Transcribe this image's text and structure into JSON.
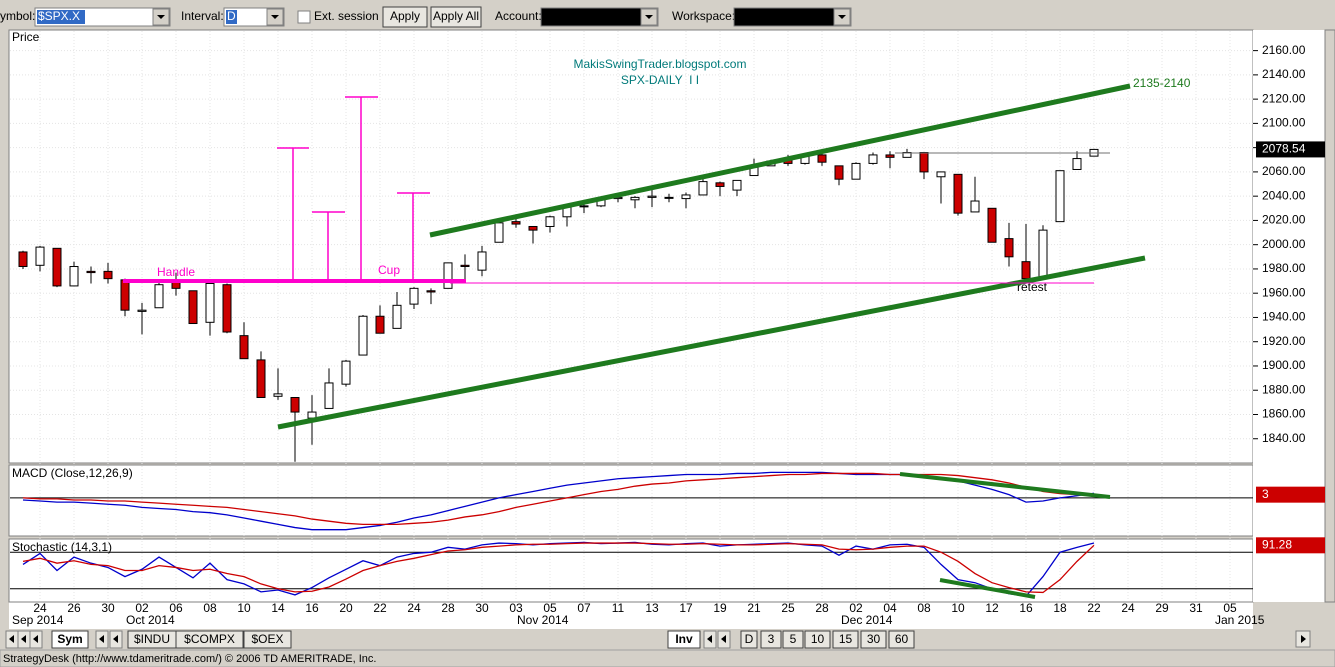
{
  "ui": {
    "toolbar": {
      "symbol_label": "ymbol:",
      "symbol": "$SPX.X",
      "interval_label": "Interval:",
      "interval": "D",
      "ext_session": "Ext. session",
      "apply": "Apply",
      "apply_all": "Apply All",
      "account_label": "Account:",
      "workspace_label": "Workspace:"
    },
    "left_tabs": [
      "Sym",
      "$INDU",
      "$COMPX",
      "$OEX"
    ],
    "right_tabs": [
      "Inv",
      "D",
      "3",
      "5",
      "10",
      "15",
      "30",
      "60"
    ],
    "status": "StrategyDesk (http://www.tdameritrade.com/) © 2006 TD AMERITRADE, Inc."
  },
  "chart_data": [
    {
      "type": "candlestick",
      "title": "MakisSwingTrader.blogspot.com",
      "subtitle": "SPX-DAILY  I I",
      "y_label": "Price",
      "categories": [
        null,
        "24",
        null,
        "26",
        null,
        "30",
        null,
        "02",
        null,
        "06",
        null,
        "08",
        null,
        "10",
        null,
        "14",
        null,
        "16",
        null,
        "20",
        null,
        "22",
        null,
        "24",
        null,
        "28",
        null,
        "30",
        null,
        "03",
        null,
        "05",
        null,
        "07",
        null,
        "11",
        null,
        "13",
        null,
        "17",
        null,
        "19",
        null,
        "21",
        null,
        "25",
        null,
        "28",
        null,
        "02",
        null,
        "04",
        null,
        "08",
        null,
        "10",
        null,
        "12",
        null,
        "16",
        null,
        "18",
        null,
        "22"
      ],
      "future_categories": [
        "24",
        "29",
        "31",
        "05"
      ],
      "months": [
        "Sep 2014",
        "Oct 2014",
        "Nov 2014",
        "Dec 2014",
        "Jan 2015"
      ],
      "open": [
        1994,
        1983,
        1997,
        1966,
        1978,
        1978,
        1971,
        1945,
        1948,
        1970,
        1962,
        1936,
        1967,
        1925,
        1905,
        1875,
        1874,
        1857,
        1865,
        1885,
        1909,
        1941,
        1931,
        1951,
        1962,
        1964,
        1983,
        1979,
        2002,
        2019,
        2015,
        2015,
        2023,
        2032,
        2032,
        2038,
        2037,
        2039,
        2039,
        2038,
        2041,
        2051,
        2045,
        2057,
        2065,
        2070,
        2067,
        2074,
        2065,
        2054,
        2067,
        2074,
        2072,
        2076,
        2056,
        2058,
        2027,
        2030,
        2005,
        1986,
        1973,
        2019,
        2062,
        2073
      ],
      "high": [
        1995,
        1999,
        1997,
        1986,
        1982,
        1985,
        1972,
        1952,
        1971,
        1977,
        1962,
        1970,
        1968,
        1936,
        1912,
        1898,
        1874,
        1876,
        1898,
        1905,
        1942,
        1950,
        1961,
        1965,
        1964,
        1985,
        1992,
        1999,
        2018,
        2025,
        2015,
        2024,
        2031,
        2034,
        2038,
        2041,
        2040,
        2046,
        2042,
        2043,
        2056,
        2052,
        2053,
        2071,
        2070,
        2074,
        2073,
        2075,
        2065,
        2068,
        2076,
        2077,
        2079,
        2076,
        2060,
        2058,
        2056,
        2030,
        2018,
        2017,
        2016,
        2061,
        2077,
        2079
      ],
      "low": [
        1980,
        1978,
        1965,
        1966,
        1968,
        1968,
        1941,
        1926,
        1948,
        1958,
        1935,
        1925,
        1927,
        1906,
        1874,
        1872,
        1821,
        1835,
        1865,
        1883,
        1909,
        1927,
        1931,
        1947,
        1951,
        1964,
        1971,
        1974,
        2002,
        2014,
        2001,
        2010,
        2015,
        2026,
        2031,
        2035,
        2030,
        2031,
        2035,
        2030,
        2041,
        2040,
        2040,
        2057,
        2065,
        2065,
        2066,
        2065,
        2049,
        2054,
        2066,
        2063,
        2072,
        2054,
        2034,
        2024,
        2027,
        2002,
        1982,
        1972,
        1973,
        2019,
        2062,
        2073
      ],
      "close": [
        1982,
        1998,
        1966,
        1982,
        1977,
        1972,
        1946,
        1946,
        1967,
        1964,
        1935,
        1968,
        1928,
        1906,
        1874,
        1877,
        1862,
        1862,
        1886,
        1904,
        1941,
        1927,
        1950,
        1964,
        1961,
        1985,
        1982,
        1994,
        2018,
        2017,
        2012,
        2023,
        2031,
        2032,
        2038,
        2039,
        2039,
        2040,
        2039,
        2041,
        2052,
        2048,
        2053,
        2064,
        2069,
        2067,
        2073,
        2068,
        2054,
        2067,
        2074,
        2072,
        2076,
        2060,
        2060,
        2026,
        2036,
        2002,
        1990,
        1972,
        2012,
        2061,
        2071,
        2078.54
      ],
      "up_color": "#ffffff",
      "down_color": "#cc0000",
      "ylim": [
        1820,
        2177
      ],
      "yticks": [
        {
          "value": 1840,
          "label": "1840.00"
        },
        {
          "value": 1860,
          "label": "1860.00"
        },
        {
          "value": 1880,
          "label": "1880.00"
        },
        {
          "value": 1900,
          "label": "1900.00"
        },
        {
          "value": 1920,
          "label": "1920.00"
        },
        {
          "value": 1940,
          "label": "1940.00"
        },
        {
          "value": 1960,
          "label": "1960.00"
        },
        {
          "value": 1980,
          "label": "1980.00"
        },
        {
          "value": 2000,
          "label": "2000.00"
        },
        {
          "value": 2020,
          "label": "2020.00"
        },
        {
          "value": 2040,
          "label": "2040.00"
        },
        {
          "value": 2060,
          "label": "2060.00"
        },
        {
          "value": 2080,
          "label": "2080.00"
        },
        {
          "value": 2100,
          "label": "2100.00"
        },
        {
          "value": 2120,
          "label": "2120.00"
        },
        {
          "value": 2140,
          "label": "2140.00"
        },
        {
          "value": 2160,
          "label": "2160.00"
        }
      ],
      "annotations": [
        "2135-2140",
        "Handle",
        "Cup",
        "retest"
      ],
      "grid": true
    },
    {
      "type": "line",
      "title": "MACD (Close,12,26,9)",
      "ylim": [
        -35,
        30
      ],
      "hlines": [
        0
      ],
      "series": [
        {
          "color": "#0000cc",
          "values": [
            -2,
            -3,
            -4,
            -4,
            -5,
            -6,
            -7,
            -9,
            -10,
            -11,
            -13,
            -14,
            -16,
            -19,
            -22,
            -25,
            -28,
            -30,
            -30,
            -30,
            -28,
            -26,
            -23,
            -19,
            -16,
            -12,
            -8,
            -4,
            0,
            3,
            6,
            9,
            12,
            14,
            16,
            18,
            19,
            20,
            21,
            22,
            22,
            22,
            23,
            23,
            24,
            24,
            24,
            24,
            23,
            22,
            22,
            22,
            22,
            21,
            19,
            16,
            12,
            8,
            3,
            -4,
            -3,
            0,
            2,
            4.35
          ]
        },
        {
          "color": "#cc0000",
          "values": [
            0,
            -1,
            -1,
            -2,
            -2,
            -3,
            -3,
            -4,
            -5,
            -6,
            -7,
            -8,
            -9,
            -11,
            -13,
            -15,
            -17,
            -20,
            -22,
            -24,
            -25,
            -25,
            -25,
            -24,
            -23,
            -21,
            -18,
            -16,
            -13,
            -9,
            -6,
            -3,
            0,
            3,
            6,
            8,
            11,
            13,
            14,
            16,
            17,
            18,
            19,
            20,
            21,
            22,
            22,
            23,
            23,
            23,
            23,
            22,
            22,
            22,
            22,
            21,
            19,
            17,
            14,
            10,
            6,
            4,
            3,
            3
          ]
        }
      ]
    },
    {
      "type": "line",
      "title": "Stochastic (14,3,1)",
      "ylim": [
        0,
        100
      ],
      "hlines": [
        20,
        80
      ],
      "series": [
        {
          "color": "#0000cc",
          "values": [
            60,
            78,
            50,
            72,
            62,
            55,
            40,
            52,
            72,
            55,
            38,
            62,
            35,
            28,
            15,
            18,
            10,
            22,
            38,
            52,
            66,
            58,
            72,
            78,
            80,
            88,
            85,
            92,
            95,
            94,
            92,
            94,
            95,
            96,
            94,
            95,
            96,
            93,
            92,
            94,
            95,
            90,
            92,
            93,
            94,
            95,
            92,
            90,
            75,
            90,
            85,
            92,
            93,
            88,
            60,
            35,
            30,
            20,
            12,
            8,
            40,
            80,
            88,
            95
          ]
        },
        {
          "color": "#cc0000",
          "values": [
            65,
            70,
            62,
            66,
            60,
            58,
            50,
            50,
            58,
            55,
            50,
            52,
            45,
            40,
            28,
            20,
            15,
            16,
            23,
            36,
            50,
            58,
            65,
            70,
            76,
            82,
            84,
            88,
            90,
            92,
            93,
            93,
            94,
            95,
            95,
            95,
            95,
            94,
            93,
            93,
            94,
            93,
            92,
            92,
            93,
            94,
            93,
            92,
            85,
            84,
            85,
            88,
            90,
            90,
            80,
            65,
            45,
            30,
            22,
            15,
            14,
            35,
            65,
            91.28
          ]
        }
      ]
    }
  ]
}
